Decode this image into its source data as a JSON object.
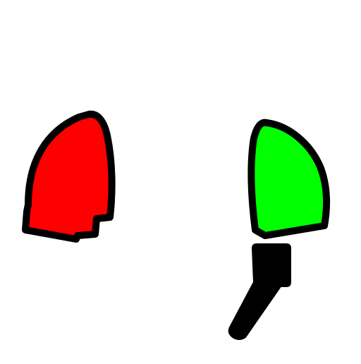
{
  "scene": {
    "background_color": "#ffffff",
    "outline_color": "#000000",
    "shapes": [
      {
        "name": "red-blob",
        "fill": "#ff0000"
      },
      {
        "name": "green-blob",
        "fill": "#00ff00"
      },
      {
        "name": "black-stand",
        "fill": "#000000"
      }
    ]
  }
}
